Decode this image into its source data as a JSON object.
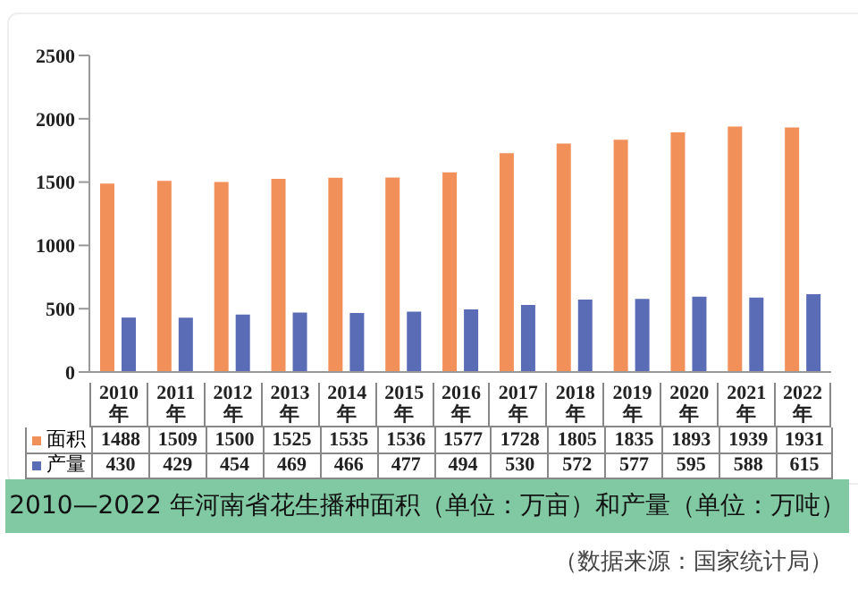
{
  "chart_data": {
    "type": "bar",
    "title": "2010—2022 年河南省花生播种面积（单位：万亩）和产量（单位：万吨）",
    "annotations": [
      "（数据来源：国家统计局）"
    ],
    "categories": [
      "2010年",
      "2011年",
      "2012年",
      "2013年",
      "2014年",
      "2015年",
      "2016年",
      "2017年",
      "2018年",
      "2019年",
      "2020年",
      "2021年",
      "2022年"
    ],
    "series": [
      {
        "name": "面积",
        "color": "#f2905a",
        "values": [
          1488,
          1509,
          1500,
          1525,
          1535,
          1536,
          1577,
          1728,
          1805,
          1835,
          1893,
          1939,
          1931
        ]
      },
      {
        "name": "产量",
        "color": "#5b6cb6",
        "values": [
          430,
          429,
          454,
          469,
          466,
          477,
          494,
          530,
          572,
          577,
          595,
          588,
          615
        ]
      }
    ],
    "ylim": [
      0,
      2500
    ],
    "yticks": [
      0,
      500,
      1000,
      1500,
      2000,
      2500
    ],
    "grid": false,
    "legend": "bottom",
    "data_labels": true
  }
}
